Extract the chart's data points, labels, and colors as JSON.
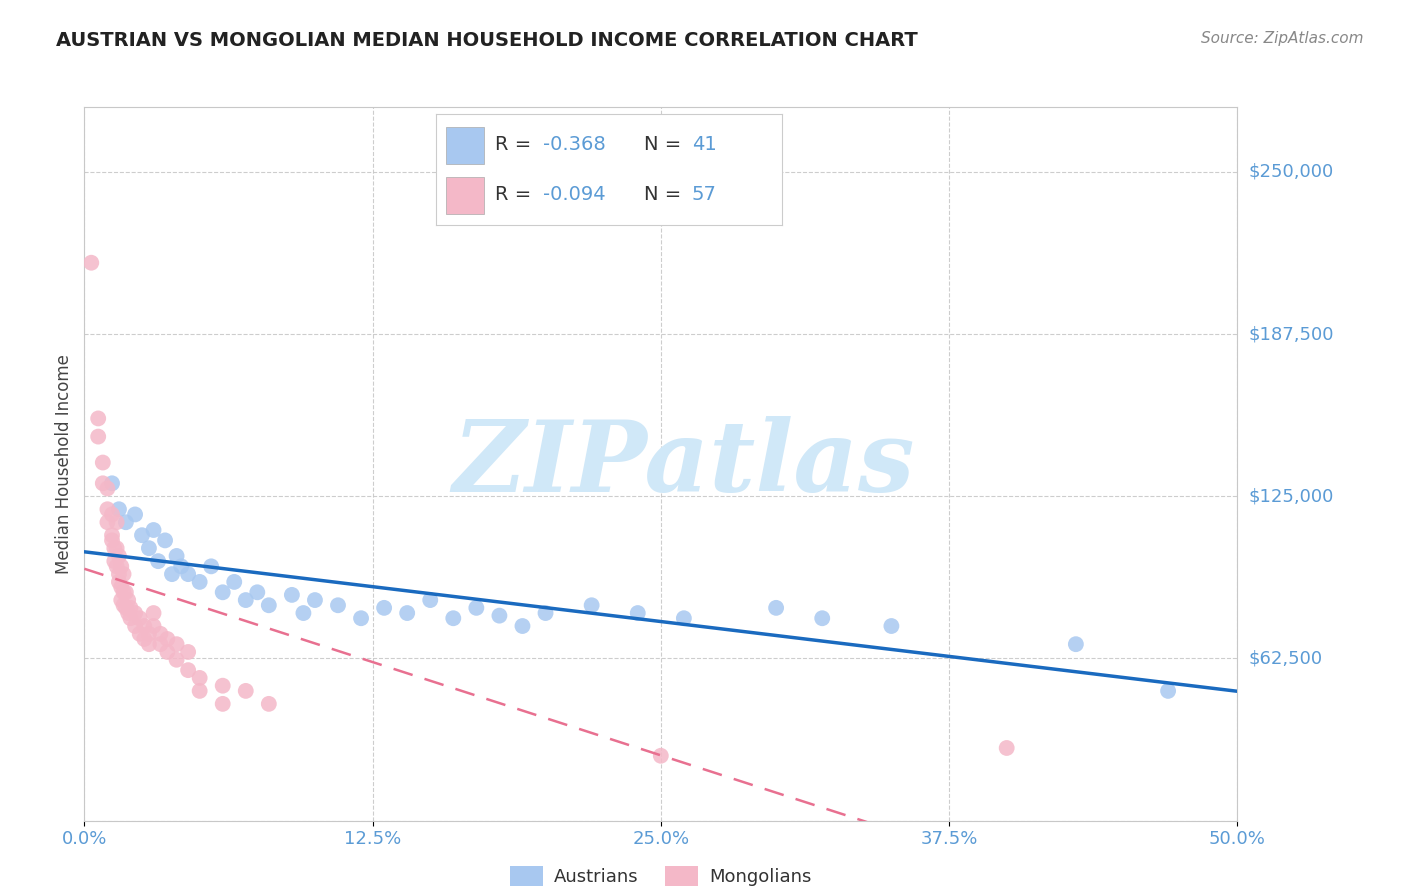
{
  "title": "AUSTRIAN VS MONGOLIAN MEDIAN HOUSEHOLD INCOME CORRELATION CHART",
  "source": "Source: ZipAtlas.com",
  "ylabel": "Median Household Income",
  "xlim": [
    0,
    0.5
  ],
  "ylim": [
    0,
    275000
  ],
  "yticks": [
    0,
    62500,
    125000,
    187500,
    250000
  ],
  "ytick_labels": [
    "",
    "$62,500",
    "$125,000",
    "$187,500",
    "$250,000"
  ],
  "xtick_labels": [
    "0.0%",
    "12.5%",
    "25.0%",
    "37.5%",
    "50.0%"
  ],
  "xticks": [
    0.0,
    0.125,
    0.25,
    0.375,
    0.5
  ],
  "austrian_color": "#a8c8f0",
  "mongolian_color": "#f4b8c8",
  "austrian_trend_color": "#1a6abf",
  "mongolian_trend_color": "#e87090",
  "title_color": "#222222",
  "source_color": "#888888",
  "axis_label_color": "#444444",
  "tick_color": "#5b9bd5",
  "grid_color": "#c8c8c8",
  "legend_r1": "R = -0.368",
  "legend_n1": "N = 41",
  "legend_r2": "R = -0.094",
  "legend_n2": "N = 57",
  "watermark_color": "#d0e8f8",
  "background_color": "#ffffff",
  "austrians": [
    [
      0.012,
      130000
    ],
    [
      0.015,
      120000
    ],
    [
      0.018,
      115000
    ],
    [
      0.022,
      118000
    ],
    [
      0.025,
      110000
    ],
    [
      0.028,
      105000
    ],
    [
      0.03,
      112000
    ],
    [
      0.032,
      100000
    ],
    [
      0.035,
      108000
    ],
    [
      0.038,
      95000
    ],
    [
      0.04,
      102000
    ],
    [
      0.042,
      98000
    ],
    [
      0.045,
      95000
    ],
    [
      0.05,
      92000
    ],
    [
      0.055,
      98000
    ],
    [
      0.06,
      88000
    ],
    [
      0.065,
      92000
    ],
    [
      0.07,
      85000
    ],
    [
      0.075,
      88000
    ],
    [
      0.08,
      83000
    ],
    [
      0.09,
      87000
    ],
    [
      0.095,
      80000
    ],
    [
      0.1,
      85000
    ],
    [
      0.11,
      83000
    ],
    [
      0.12,
      78000
    ],
    [
      0.13,
      82000
    ],
    [
      0.14,
      80000
    ],
    [
      0.15,
      85000
    ],
    [
      0.16,
      78000
    ],
    [
      0.17,
      82000
    ],
    [
      0.18,
      79000
    ],
    [
      0.19,
      75000
    ],
    [
      0.2,
      80000
    ],
    [
      0.22,
      83000
    ],
    [
      0.24,
      80000
    ],
    [
      0.26,
      78000
    ],
    [
      0.3,
      82000
    ],
    [
      0.32,
      78000
    ],
    [
      0.35,
      75000
    ],
    [
      0.43,
      68000
    ],
    [
      0.47,
      50000
    ]
  ],
  "mongolians": [
    [
      0.003,
      215000
    ],
    [
      0.006,
      155000
    ],
    [
      0.006,
      148000
    ],
    [
      0.008,
      138000
    ],
    [
      0.008,
      130000
    ],
    [
      0.01,
      128000
    ],
    [
      0.01,
      120000
    ],
    [
      0.01,
      115000
    ],
    [
      0.012,
      118000
    ],
    [
      0.012,
      110000
    ],
    [
      0.012,
      108000
    ],
    [
      0.013,
      105000
    ],
    [
      0.013,
      100000
    ],
    [
      0.014,
      115000
    ],
    [
      0.014,
      105000
    ],
    [
      0.014,
      98000
    ],
    [
      0.015,
      102000
    ],
    [
      0.015,
      95000
    ],
    [
      0.015,
      92000
    ],
    [
      0.016,
      98000
    ],
    [
      0.016,
      90000
    ],
    [
      0.016,
      85000
    ],
    [
      0.017,
      95000
    ],
    [
      0.017,
      88000
    ],
    [
      0.017,
      83000
    ],
    [
      0.018,
      88000
    ],
    [
      0.018,
      82000
    ],
    [
      0.019,
      85000
    ],
    [
      0.019,
      80000
    ],
    [
      0.02,
      82000
    ],
    [
      0.02,
      78000
    ],
    [
      0.022,
      80000
    ],
    [
      0.022,
      75000
    ],
    [
      0.024,
      78000
    ],
    [
      0.024,
      72000
    ],
    [
      0.026,
      75000
    ],
    [
      0.026,
      70000
    ],
    [
      0.028,
      72000
    ],
    [
      0.028,
      68000
    ],
    [
      0.03,
      80000
    ],
    [
      0.03,
      75000
    ],
    [
      0.033,
      72000
    ],
    [
      0.033,
      68000
    ],
    [
      0.036,
      70000
    ],
    [
      0.036,
      65000
    ],
    [
      0.04,
      68000
    ],
    [
      0.04,
      62000
    ],
    [
      0.045,
      65000
    ],
    [
      0.045,
      58000
    ],
    [
      0.05,
      55000
    ],
    [
      0.05,
      50000
    ],
    [
      0.06,
      52000
    ],
    [
      0.06,
      45000
    ],
    [
      0.07,
      50000
    ],
    [
      0.08,
      45000
    ],
    [
      0.25,
      25000
    ],
    [
      0.4,
      28000
    ]
  ]
}
